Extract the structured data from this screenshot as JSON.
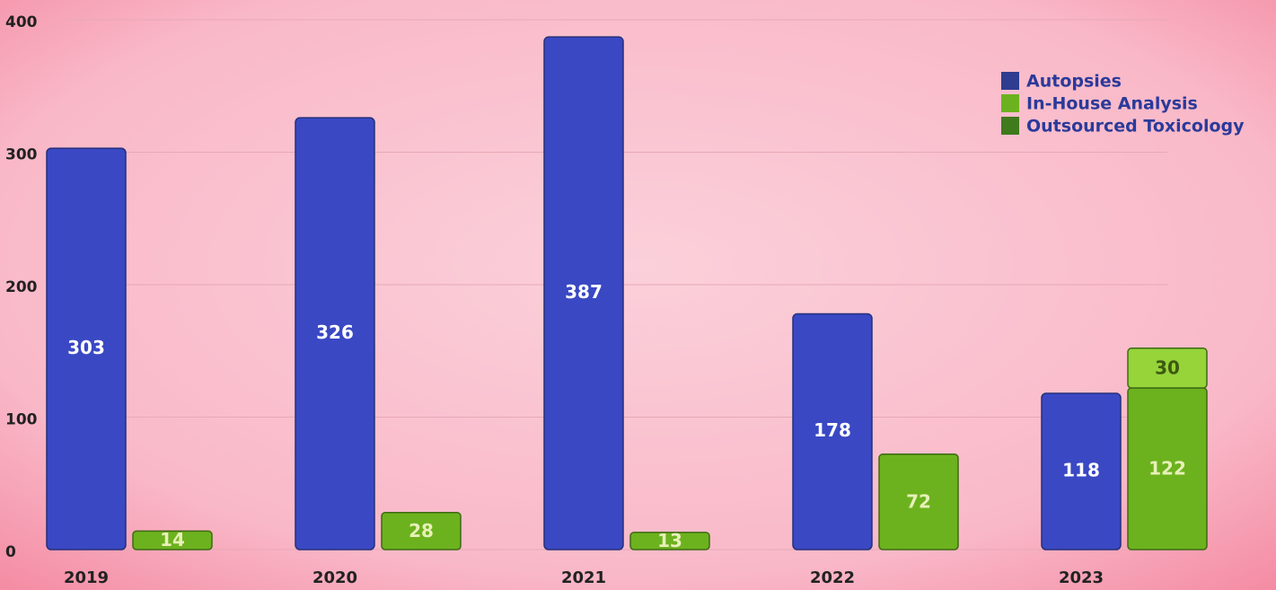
{
  "chart_data": {
    "type": "bar",
    "categories": [
      "2019",
      "2020",
      "2021",
      "2022",
      "2023"
    ],
    "series": [
      {
        "name": "Autopsies",
        "color": "#3a48c4",
        "values": [
          303,
          326,
          387,
          178,
          118
        ]
      },
      {
        "name": "In-House Analysis",
        "color": "#6cb21e",
        "values": [
          14,
          28,
          13,
          72,
          122
        ]
      },
      {
        "name": "Outsourced Toxicology",
        "color": "#96d43a",
        "values": [
          null,
          null,
          null,
          null,
          30
        ]
      }
    ],
    "legend_colors": [
      "#2e3d8f",
      "#6cb21e",
      "#3f7a1c"
    ],
    "ylim": [
      0,
      400
    ],
    "yticks": [
      0,
      100,
      200,
      300,
      400
    ],
    "grid": true,
    "legend": "upper right"
  }
}
